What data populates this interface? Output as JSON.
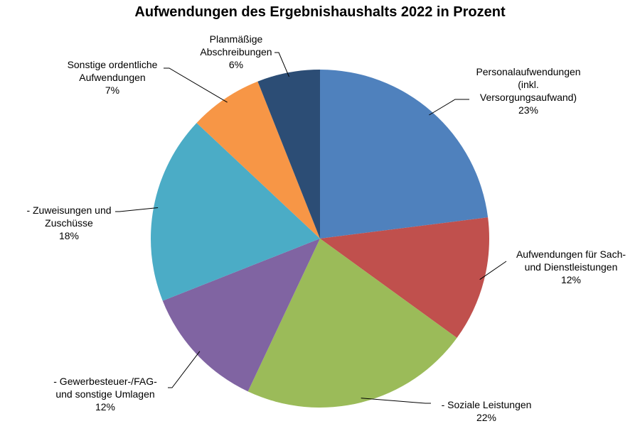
{
  "chart_data": {
    "type": "pie",
    "title": "Aufwendungen des Ergebnishaushalts 2022 in Prozent",
    "unit": "%",
    "slices": [
      {
        "lines": [
          "Personalaufwendungen",
          "(inkl.",
          "Versorgungsaufwand)"
        ],
        "value": 23,
        "value_label": "23%",
        "color": "#4F81BD"
      },
      {
        "lines": [
          "Aufwendungen für Sach-",
          "und Dienstleistungen"
        ],
        "value": 12,
        "value_label": "12%",
        "color": "#C0504D"
      },
      {
        "lines": [
          "- Soziale Leistungen"
        ],
        "value": 22,
        "value_label": "22%",
        "color": "#9BBB59"
      },
      {
        "lines": [
          "- Gewerbesteuer-/FAG-",
          "und sonstige Umlagen"
        ],
        "value": 12,
        "value_label": "12%",
        "color": "#8064A2"
      },
      {
        "lines": [
          "- Zuweisungen und",
          "Zuschüsse"
        ],
        "value": 18,
        "value_label": "18%",
        "color": "#4BACC6"
      },
      {
        "lines": [
          "Sonstige ordentliche",
          "Aufwendungen"
        ],
        "value": 7,
        "value_label": "7%",
        "color": "#F79646"
      },
      {
        "lines": [
          "Planmäßige",
          "Abschreibungen"
        ],
        "value": 6,
        "value_label": "6%",
        "color": "#2C4D75"
      }
    ],
    "start_angle": "12 o'clock",
    "direction": "clockwise",
    "legend": "none"
  }
}
